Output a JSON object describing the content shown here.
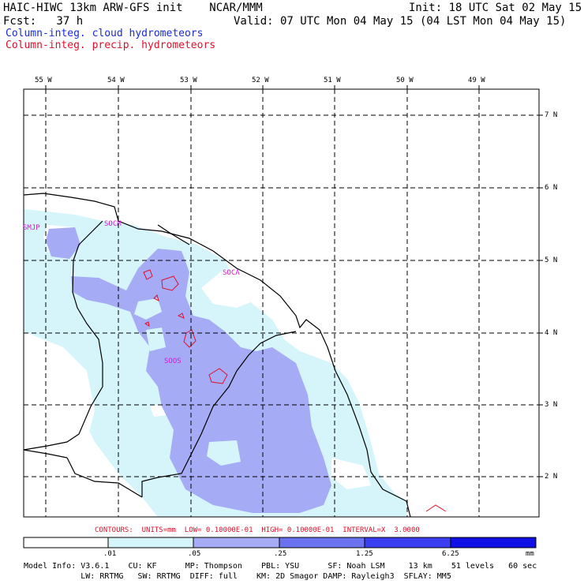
{
  "header": {
    "title_left": "HAIC-HIWC 13km ARW-GFS init    NCAR/MMM",
    "init": "Init: 18 UTC Sat 02 May 15",
    "fcst": "Fcst:   37 h",
    "valid": "Valid: 07 UTC Mon 04 May 15 (04 LST Mon 04 May 15)",
    "legend_cloud": "Column-integ. cloud hydrometeors",
    "legend_precip": "Column-integ. precip. hydrometeors"
  },
  "axes": {
    "lon_labels": [
      "55 W",
      "54 W",
      "53 W",
      "52 W",
      "51 W",
      "50 W",
      "49 W"
    ],
    "lat_labels": [
      "7 N",
      "6 N",
      "5 N",
      "4 N",
      "3 N",
      "2 N"
    ]
  },
  "stations": [
    "SMJP",
    "SOCM",
    "SOCA",
    "SOOS"
  ],
  "contour_note": "CONTOURS:  UNITS=mm  LOW= 0.10000E-01  HIGH= 0.10000E-01  INTERVAL=X  3.0000",
  "colorbar": {
    "ticks": [
      ".01",
      ".05",
      ".25",
      "1.25",
      "6.25"
    ],
    "units": "mm",
    "colors": [
      "#ffffff",
      "#d6f5fb",
      "#a6abf6",
      "#6a72f0",
      "#3a3ef0",
      "#1010e6"
    ]
  },
  "footer": {
    "line1": "Model Info: V3.6.1    CU: KF      MP: Thompson    PBL: YSU      SF: Noah LSM     13 km    51 levels   60 sec",
    "line2": "            LW: RRTMG   SW: RRTMG  DIFF: full    KM: 2D Smagor DAMP: Rayleigh3  SFLAY: MM5"
  }
}
